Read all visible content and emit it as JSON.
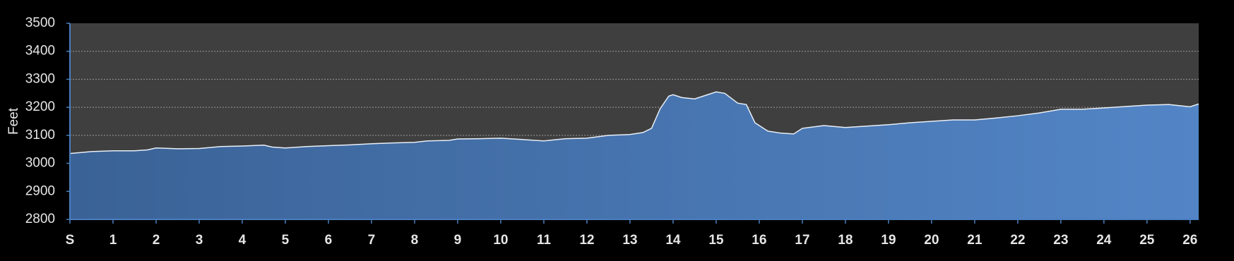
{
  "chart_data": {
    "type": "area",
    "y_label": "Feet",
    "x": [
      0,
      0.5,
      1,
      1.5,
      1.8,
      2,
      2.5,
      3,
      3.5,
      4,
      4.5,
      4.7,
      5,
      5.5,
      6,
      6.5,
      7,
      7.5,
      8,
      8.3,
      8.8,
      9,
      9.5,
      10,
      10.5,
      11,
      11.5,
      12,
      12.5,
      13,
      13.3,
      13.5,
      13.7,
      13.9,
      14,
      14.2,
      14.5,
      14.8,
      15,
      15.2,
      15.5,
      15.7,
      15.9,
      16.2,
      16.5,
      16.8,
      17,
      17.5,
      18,
      18.5,
      19,
      19.5,
      20,
      20.5,
      21,
      21.5,
      22,
      22.5,
      23,
      23.5,
      24,
      24.5,
      25,
      25.5,
      26,
      26.2
    ],
    "values": [
      3035,
      3042,
      3045,
      3045,
      3048,
      3055,
      3052,
      3053,
      3060,
      3062,
      3065,
      3058,
      3055,
      3060,
      3063,
      3066,
      3070,
      3073,
      3075,
      3080,
      3082,
      3087,
      3088,
      3090,
      3085,
      3080,
      3088,
      3090,
      3100,
      3103,
      3110,
      3125,
      3195,
      3240,
      3245,
      3235,
      3230,
      3245,
      3255,
      3250,
      3215,
      3210,
      3145,
      3115,
      3108,
      3105,
      3125,
      3135,
      3128,
      3133,
      3138,
      3145,
      3150,
      3155,
      3155,
      3162,
      3170,
      3180,
      3193,
      3193,
      3198,
      3203,
      3208,
      3210,
      3202,
      3212
    ],
    "color": "#4f80c0",
    "line_color": "#e8eef6",
    "xlim": [
      0,
      26.2
    ],
    "ylim": [
      2800,
      3500
    ],
    "xticks": [
      {
        "value": 0,
        "label": "S"
      },
      1,
      2,
      3,
      4,
      5,
      6,
      7,
      8,
      9,
      10,
      11,
      12,
      13,
      14,
      15,
      16,
      17,
      18,
      19,
      20,
      21,
      22,
      23,
      24,
      25,
      26
    ],
    "yticks": [
      2800,
      2900,
      3000,
      3100,
      3200,
      3300,
      3400,
      3500
    ],
    "grid": true
  }
}
